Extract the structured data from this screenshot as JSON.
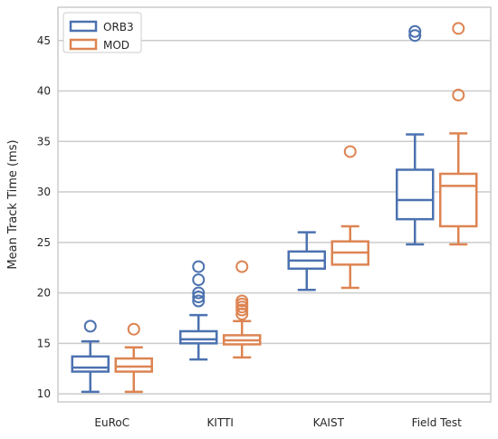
{
  "chart_data": {
    "type": "boxplot",
    "title": "",
    "xlabel": "",
    "ylabel": "Mean Track Time (ms)",
    "categories": [
      "EuRoC",
      "KITTI",
      "KAIST",
      "Field Test"
    ],
    "ylim": [
      9.2,
      48.3
    ],
    "yticks": [
      10,
      15,
      20,
      25,
      30,
      35,
      40,
      45
    ],
    "grid": "horizontal",
    "legend": "top-left",
    "series": [
      {
        "name": "ORB3",
        "color": "#4c72b0",
        "boxes": [
          {
            "whisker_low": 10.2,
            "q1": 12.2,
            "median": 12.6,
            "q3": 13.7,
            "whisker_high": 15.2,
            "outliers": [
              16.7
            ]
          },
          {
            "whisker_low": 13.4,
            "q1": 15.0,
            "median": 15.4,
            "q3": 16.2,
            "whisker_high": 17.8,
            "outliers": [
              19.2,
              19.6,
              20.0,
              21.3,
              22.6
            ]
          },
          {
            "whisker_low": 20.3,
            "q1": 22.4,
            "median": 23.2,
            "q3": 24.1,
            "whisker_high": 26.0,
            "outliers": []
          },
          {
            "whisker_low": 24.8,
            "q1": 27.3,
            "median": 29.2,
            "q3": 32.2,
            "whisker_high": 35.7,
            "outliers": [
              45.5,
              45.9
            ]
          }
        ]
      },
      {
        "name": "MOD",
        "color": "#dd8452",
        "boxes": [
          {
            "whisker_low": 10.2,
            "q1": 12.2,
            "median": 12.7,
            "q3": 13.5,
            "whisker_high": 14.6,
            "outliers": [
              16.4
            ]
          },
          {
            "whisker_low": 13.6,
            "q1": 14.9,
            "median": 15.3,
            "q3": 15.8,
            "whisker_high": 17.2,
            "outliers": [
              17.9,
              18.3,
              18.6,
              18.9,
              19.2,
              22.6
            ]
          },
          {
            "whisker_low": 20.5,
            "q1": 22.8,
            "median": 24.0,
            "q3": 25.1,
            "whisker_high": 26.6,
            "outliers": [
              34.0
            ]
          },
          {
            "whisker_low": 24.8,
            "q1": 26.6,
            "median": 30.6,
            "q3": 31.8,
            "whisker_high": 35.8,
            "outliers": [
              39.6,
              46.2
            ]
          }
        ]
      }
    ]
  }
}
